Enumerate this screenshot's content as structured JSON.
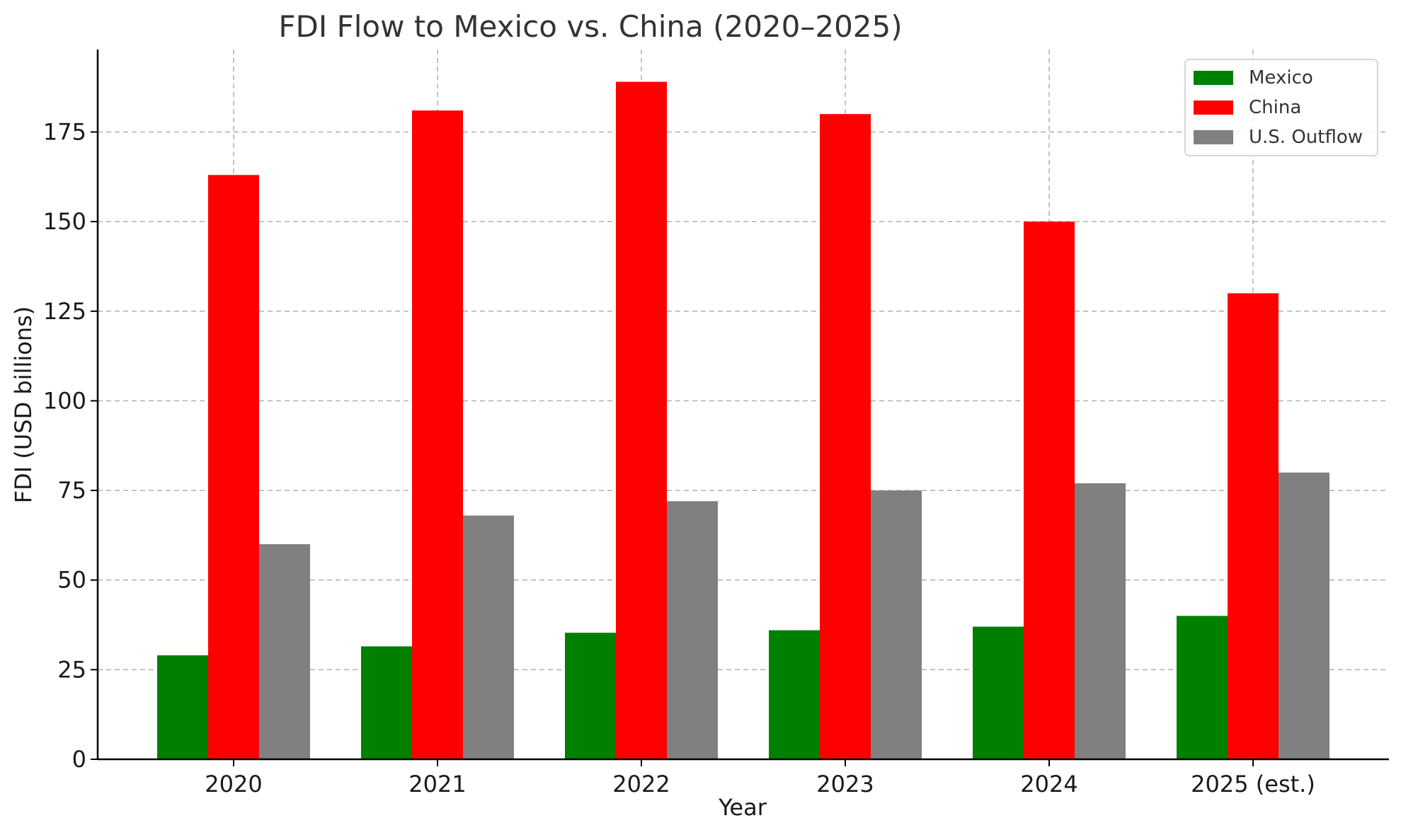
{
  "chart_data": {
    "type": "bar",
    "title": "FDI Flow to Mexico vs. China (2020–2025)",
    "xlabel": "Year",
    "ylabel": "FDI (USD billions)",
    "categories": [
      "2020",
      "2021",
      "2022",
      "2023",
      "2024",
      "2025 (est.)"
    ],
    "series": [
      {
        "name": "Mexico",
        "color": "#008000",
        "values": [
          29,
          31.5,
          35.3,
          36,
          37,
          40
        ]
      },
      {
        "name": "China",
        "color": "#ff0000",
        "values": [
          163,
          181,
          189,
          180,
          150,
          130
        ]
      },
      {
        "name": "U.S. Outflow",
        "color": "#808080",
        "values": [
          60,
          68,
          72,
          75,
          77,
          80
        ]
      }
    ],
    "ylim": [
      0,
      198
    ],
    "yticks": [
      "0",
      "25",
      "50",
      "75",
      "100",
      "125",
      "150",
      "175"
    ],
    "grid": true,
    "legend_position": "top-right"
  }
}
